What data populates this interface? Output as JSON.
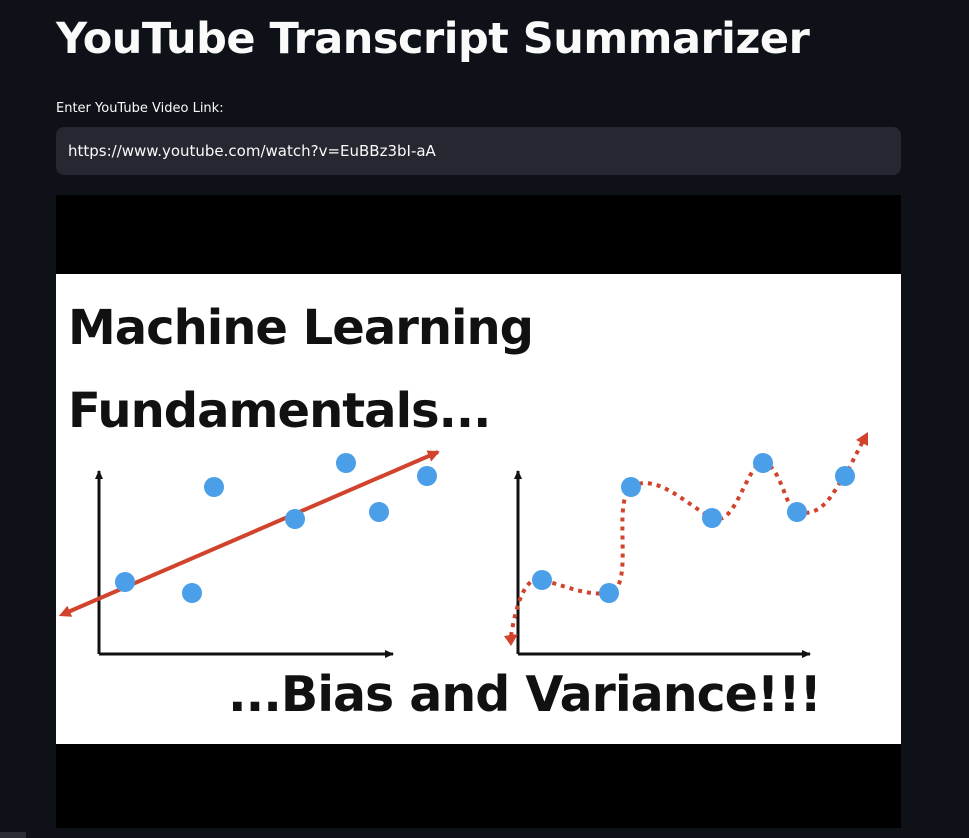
{
  "header": {
    "title": "YouTube Transcript Summarizer"
  },
  "form": {
    "link_label": "Enter YouTube Video Link:",
    "link_value": "https://www.youtube.com/watch?v=EuBBz3bI-aA"
  },
  "thumbnail": {
    "line1": "Machine Learning",
    "line2": "Fundamentals...",
    "line3": "...Bias and Variance!!!",
    "colors": {
      "point": "#4a9fe8",
      "fit": "#d1432c",
      "axis": "#111111"
    }
  }
}
